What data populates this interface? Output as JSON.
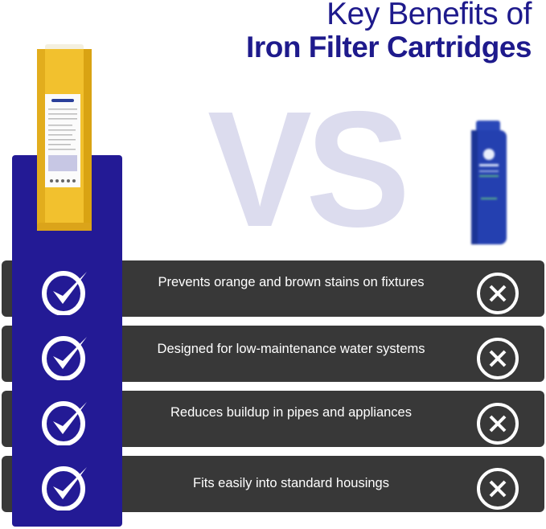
{
  "header": {
    "title_line1": "Key Benefits of",
    "title_line2": "Iron Filter Cartridges"
  },
  "vs_label": "VS",
  "colors": {
    "brand_blue": "#231a95",
    "row_bg": "#383838",
    "vs_color": "#dcdcee",
    "cartridge_yellow": "#f2c12e",
    "competitor_blue": "#2440b0"
  },
  "benefits": [
    {
      "text": "Prevents orange and brown stains on fixtures",
      "ours": "check-icon",
      "theirs": "x-icon"
    },
    {
      "text": "Designed for low-maintenance water systems",
      "ours": "check-icon",
      "theirs": "x-icon"
    },
    {
      "text": "Reduces buildup in pipes and appliances",
      "ours": "check-icon",
      "theirs": "x-icon"
    },
    {
      "text": "Fits easily into standard housings",
      "ours": "check-icon",
      "theirs": "x-icon"
    }
  ]
}
